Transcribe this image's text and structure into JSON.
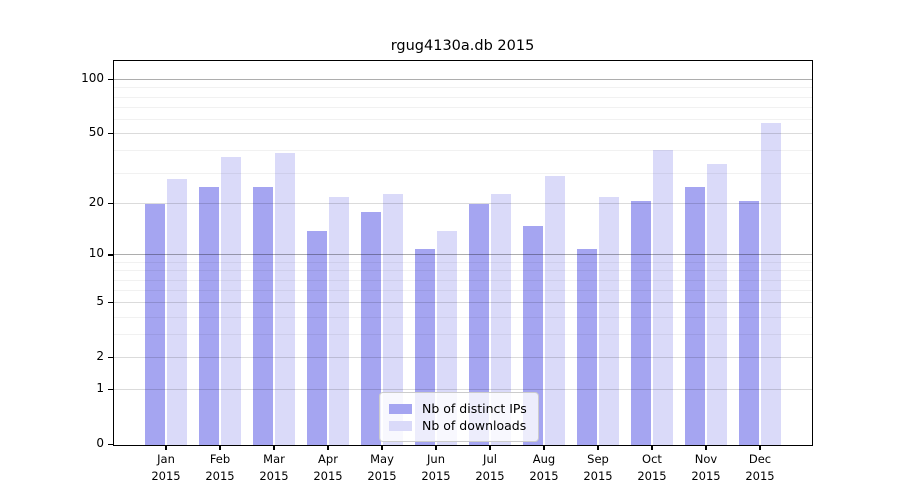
{
  "title": "rgug4130a.db 2015",
  "chart_data": {
    "type": "bar",
    "title": "rgug4130a.db 2015",
    "xlabel": "",
    "ylabel": "",
    "y_scale": "log10(value+1)",
    "ylim": [
      0,
      126
    ],
    "grid": true,
    "legend_position": "lower center",
    "categories": [
      "Jan",
      "Feb",
      "Mar",
      "Apr",
      "May",
      "Jun",
      "Jul",
      "Aug",
      "Sep",
      "Oct",
      "Nov",
      "Dec"
    ],
    "year_label": "2015",
    "yticks": [
      0,
      1,
      2,
      5,
      10,
      20,
      50,
      100
    ],
    "grid_major_light": [
      1,
      2,
      5,
      20,
      50
    ],
    "grid_major_dark": [
      10,
      100
    ],
    "grid_minor": [
      3,
      4,
      6,
      7,
      8,
      9,
      30,
      40,
      60,
      70,
      80,
      90
    ],
    "series": [
      {
        "name": "Nb of distinct IPs",
        "color": "#a5a5f1",
        "values": [
          20,
          25,
          25,
          14,
          18,
          11,
          20,
          15,
          11,
          21,
          25,
          21
        ]
      },
      {
        "name": "Nb of downloads",
        "color": "#dadaf9",
        "values": [
          28,
          37,
          39,
          22,
          23,
          14,
          23,
          29,
          22,
          41,
          34,
          58
        ]
      }
    ]
  }
}
